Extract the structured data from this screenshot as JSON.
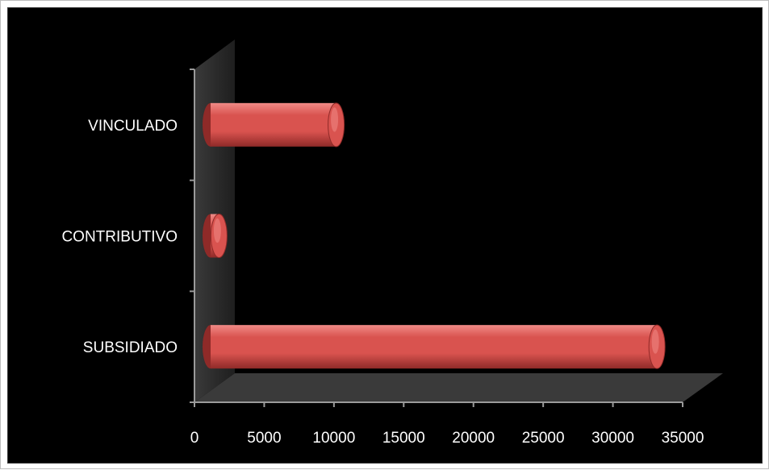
{
  "chart_data": {
    "type": "bar",
    "orientation": "horizontal",
    "style": "3d-cylinder",
    "categories": [
      "SUBSIDIADO",
      "CONTRIBUTIVO",
      "VINCULADO"
    ],
    "values": [
      32000,
      600,
      9000
    ],
    "xlim": [
      0,
      35000
    ],
    "xticks": [
      0,
      5000,
      10000,
      15000,
      20000,
      25000,
      30000,
      35000
    ],
    "xtick_labels": [
      "0",
      "5000",
      "10000",
      "15000",
      "20000",
      "25000",
      "30000",
      "35000"
    ],
    "title": "",
    "xlabel": "",
    "ylabel": "",
    "legend": "none",
    "grid": false,
    "colors": {
      "background": "#000000",
      "bar": "#d9534f",
      "bar_highlight": "#f08a86",
      "bar_shadow": "#8f2a28",
      "wall": "#2f2f2f",
      "floor": "#3a3a3a",
      "text": "#ffffff",
      "axis": "#9a9a9a"
    }
  }
}
